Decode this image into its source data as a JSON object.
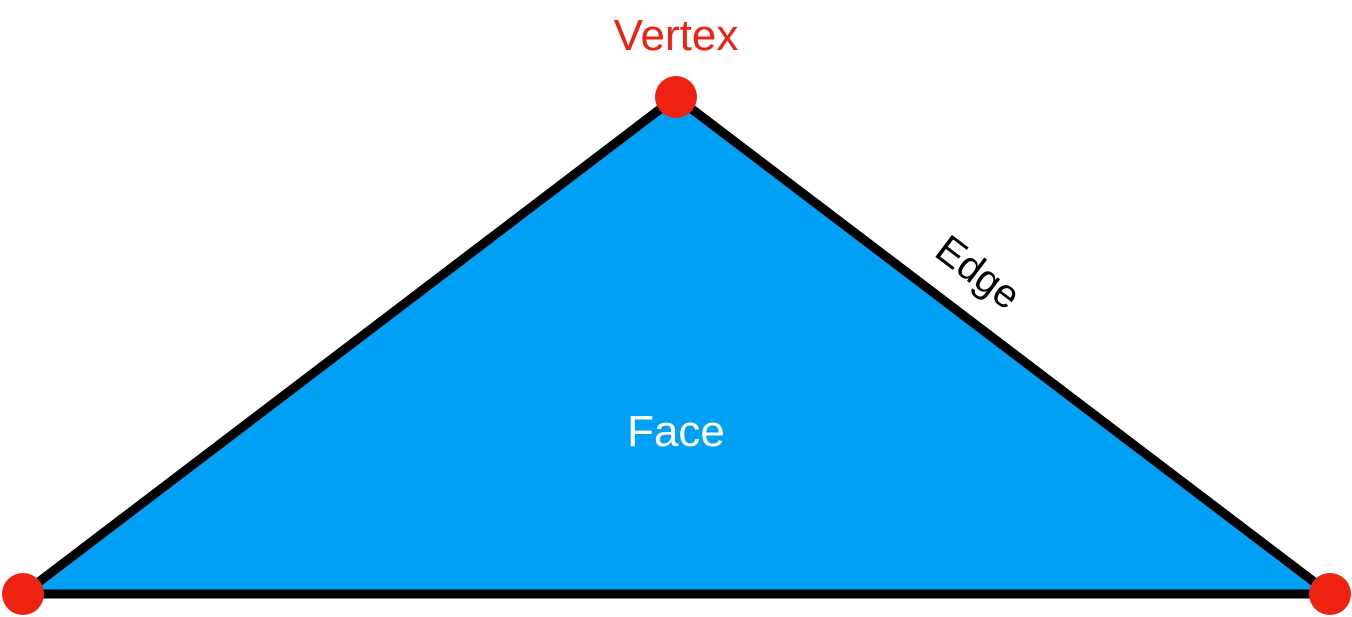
{
  "labels": {
    "vertex": "Vertex",
    "edge": "Edge",
    "face": "Face"
  },
  "colors": {
    "background": "#ffffff",
    "face_fill": "#00a0f5",
    "edge_stroke": "#000000",
    "vertex_fill": "#ee2211",
    "vertex_label": "#ee2211",
    "edge_label": "#000000",
    "face_label": "#ffffff"
  }
}
